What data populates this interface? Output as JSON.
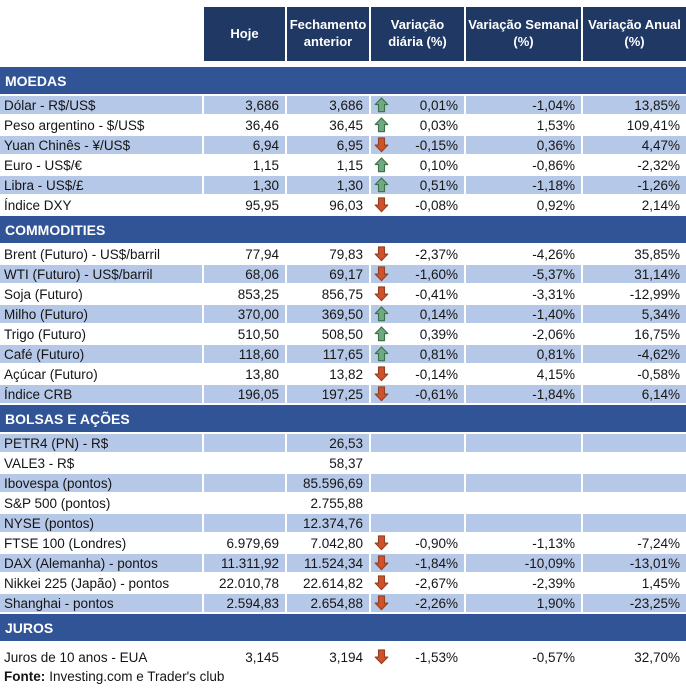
{
  "chart_data": {
    "type": "table",
    "columns": [
      "Hoje",
      "Fechamento anterior",
      "Variação diária (%)",
      "Variação Semanal (%)",
      "Variação Anual (%)"
    ],
    "sections": [
      {
        "title": "MOEDAS",
        "rows": [
          {
            "label": "Dólar - R$/US$",
            "hoje": "3,686",
            "fechamento": "3,686",
            "arrow": "up",
            "diaria": "0,01%",
            "semanal": "-1,04%",
            "anual": "13,85%",
            "shaded": true
          },
          {
            "label": "Peso argentino - $/US$",
            "hoje": "36,46",
            "fechamento": "36,45",
            "arrow": "up",
            "diaria": "0,03%",
            "semanal": "1,53%",
            "anual": "109,41%",
            "shaded": false
          },
          {
            "label": "Yuan Chinês - ¥/US$",
            "hoje": "6,94",
            "fechamento": "6,95",
            "arrow": "down",
            "diaria": "-0,15%",
            "semanal": "0,36%",
            "anual": "4,47%",
            "shaded": true
          },
          {
            "label": "Euro - US$/€",
            "hoje": "1,15",
            "fechamento": "1,15",
            "arrow": "up",
            "diaria": "0,10%",
            "semanal": "-0,86%",
            "anual": "-2,32%",
            "shaded": false
          },
          {
            "label": "Libra - US$/£",
            "hoje": "1,30",
            "fechamento": "1,30",
            "arrow": "up",
            "diaria": "0,51%",
            "semanal": "-1,18%",
            "anual": "-1,26%",
            "shaded": true
          },
          {
            "label": "Índice DXY",
            "hoje": "95,95",
            "fechamento": "96,03",
            "arrow": "down",
            "diaria": "-0,08%",
            "semanal": "0,92%",
            "anual": "2,14%",
            "shaded": false
          }
        ]
      },
      {
        "title": "COMMODITIES",
        "rows": [
          {
            "label": "Brent (Futuro) - US$/barril",
            "hoje": "77,94",
            "fechamento": "79,83",
            "arrow": "down",
            "diaria": "-2,37%",
            "semanal": "-4,26%",
            "anual": "35,85%",
            "shaded": false
          },
          {
            "label": "WTI (Futuro) - US$/barril",
            "hoje": "68,06",
            "fechamento": "69,17",
            "arrow": "down",
            "diaria": "-1,60%",
            "semanal": "-5,37%",
            "anual": "31,14%",
            "shaded": true
          },
          {
            "label": "Soja (Futuro)",
            "hoje": "853,25",
            "fechamento": "856,75",
            "arrow": "down",
            "diaria": "-0,41%",
            "semanal": "-3,31%",
            "anual": "-12,99%",
            "shaded": false
          },
          {
            "label": "Milho (Futuro)",
            "hoje": "370,00",
            "fechamento": "369,50",
            "arrow": "up",
            "diaria": "0,14%",
            "semanal": "-1,40%",
            "anual": "5,34%",
            "shaded": true
          },
          {
            "label": "Trigo (Futuro)",
            "hoje": "510,50",
            "fechamento": "508,50",
            "arrow": "up",
            "diaria": "0,39%",
            "semanal": "-2,06%",
            "anual": "16,75%",
            "shaded": false
          },
          {
            "label": "Café (Futuro)",
            "hoje": "118,60",
            "fechamento": "117,65",
            "arrow": "up",
            "diaria": "0,81%",
            "semanal": "0,81%",
            "anual": "-4,62%",
            "shaded": true
          },
          {
            "label": "Açúcar (Futuro)",
            "hoje": "13,80",
            "fechamento": "13,82",
            "arrow": "down",
            "diaria": "-0,14%",
            "semanal": "4,15%",
            "anual": "-0,58%",
            "shaded": false
          },
          {
            "label": "Índice CRB",
            "hoje": "196,05",
            "fechamento": "197,25",
            "arrow": "down",
            "diaria": "-0,61%",
            "semanal": "-1,84%",
            "anual": "6,14%",
            "shaded": true
          }
        ]
      },
      {
        "title": "BOLSAS E AÇÕES",
        "rows": [
          {
            "label": "PETR4 (PN) - R$",
            "hoje": "",
            "fechamento": "26,53",
            "arrow": "none",
            "diaria": "",
            "semanal": "",
            "anual": "",
            "shaded": true
          },
          {
            "label": "VALE3 - R$",
            "hoje": "",
            "fechamento": "58,37",
            "arrow": "none",
            "diaria": "",
            "semanal": "",
            "anual": "",
            "shaded": false
          },
          {
            "label": "Ibovespa (pontos)",
            "hoje": "",
            "fechamento": "85.596,69",
            "arrow": "none",
            "diaria": "",
            "semanal": "",
            "anual": "",
            "shaded": true
          },
          {
            "label": "S&P 500 (pontos)",
            "hoje": "",
            "fechamento": "2.755,88",
            "arrow": "none",
            "diaria": "",
            "semanal": "",
            "anual": "",
            "shaded": false
          },
          {
            "label": "NYSE (pontos)",
            "hoje": "",
            "fechamento": "12.374,76",
            "arrow": "none",
            "diaria": "",
            "semanal": "",
            "anual": "",
            "shaded": true
          },
          {
            "label": "FTSE 100 (Londres)",
            "hoje": "6.979,69",
            "fechamento": "7.042,80",
            "arrow": "down",
            "diaria": "-0,90%",
            "semanal": "-1,13%",
            "anual": "-7,24%",
            "shaded": false
          },
          {
            "label": "DAX (Alemanha) - pontos",
            "hoje": "11.311,92",
            "fechamento": "11.524,34",
            "arrow": "down",
            "diaria": "-1,84%",
            "semanal": "-10,09%",
            "anual": "-13,01%",
            "shaded": true
          },
          {
            "label": "Nikkei 225 (Japão) - pontos",
            "hoje": "22.010,78",
            "fechamento": "22.614,82",
            "arrow": "down",
            "diaria": "-2,67%",
            "semanal": "-2,39%",
            "anual": "1,45%",
            "shaded": false
          },
          {
            "label": "Shanghai - pontos",
            "hoje": "2.594,83",
            "fechamento": "2.654,88",
            "arrow": "down",
            "diaria": "-2,26%",
            "semanal": "1,90%",
            "anual": "-23,25%",
            "shaded": true
          }
        ]
      },
      {
        "title": "JUROS",
        "rows": [
          {
            "label": "Juros de 10 anos - EUA",
            "hoje": "3,145",
            "fechamento": "3,194",
            "arrow": "down",
            "diaria": "-1,53%",
            "semanal": "-0,57%",
            "anual": "32,70%",
            "shaded": false
          }
        ]
      }
    ]
  },
  "footer": {
    "fonte_label": "Fonte:",
    "fonte_text": "Investing.com e Trader's club"
  },
  "colors": {
    "header_bg": "#1F3864",
    "section_bg": "#305496",
    "row_shade": "#B6C8E7",
    "header_text": "#FFFFFF"
  },
  "icons": {
    "up_arrow_fill": "#6FA883",
    "up_arrow_stroke": "#3A7145",
    "down_arrow_fill": "#D0512E",
    "down_arrow_stroke": "#93401F"
  }
}
